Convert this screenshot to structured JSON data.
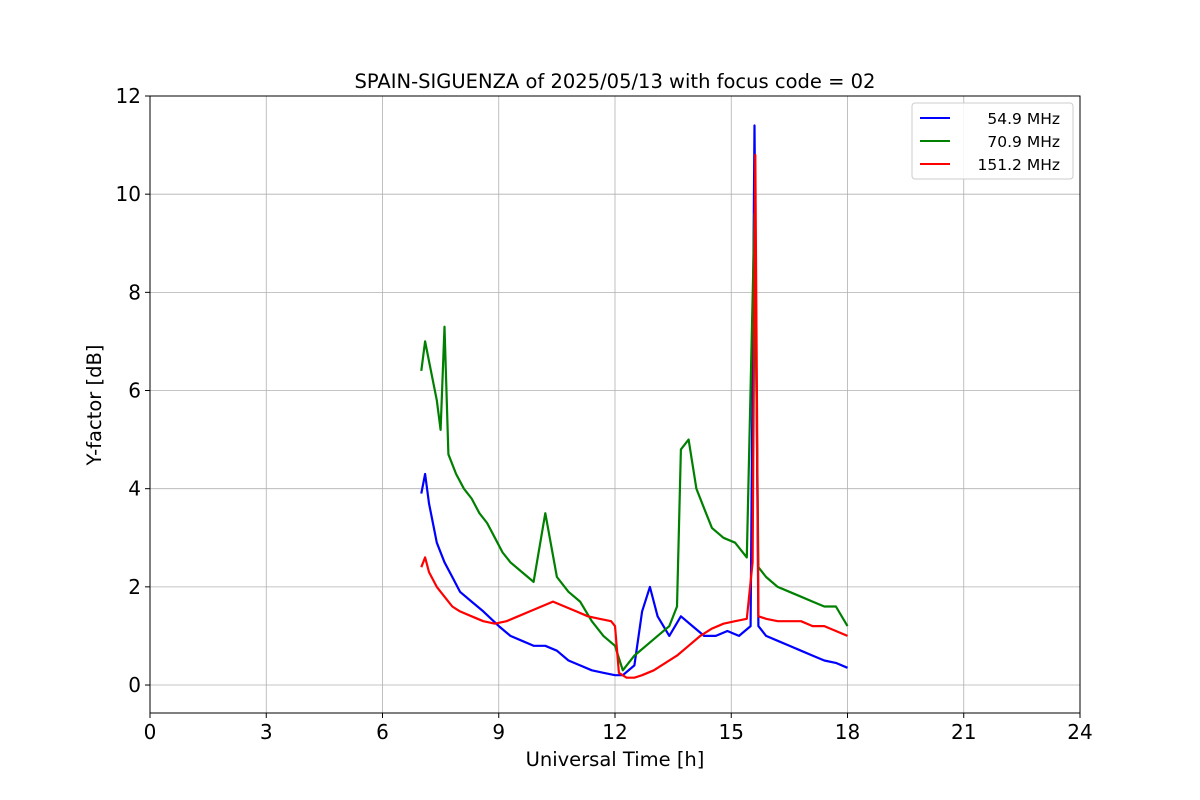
{
  "chart_data": {
    "type": "line",
    "title": "SPAIN-SIGUENZA of 2025/05/13 with focus code = 02",
    "xlabel": "Universal Time [h]",
    "ylabel": "Y-factor [dB]",
    "xlim": [
      0,
      24
    ],
    "ylim": [
      -0.57,
      12
    ],
    "xticks": [
      0,
      3,
      6,
      9,
      12,
      15,
      18,
      21,
      24
    ],
    "yticks": [
      0,
      2,
      4,
      6,
      8,
      10,
      12
    ],
    "grid": true,
    "legend_position": "top-right",
    "series": [
      {
        "name": "54.9 MHz",
        "color": "#0000ff",
        "x": [
          7.0,
          7.1,
          7.2,
          7.3,
          7.4,
          7.6,
          7.8,
          8.0,
          8.3,
          8.6,
          9.0,
          9.3,
          9.6,
          9.9,
          10.2,
          10.5,
          10.8,
          11.1,
          11.4,
          11.7,
          12.0,
          12.2,
          12.5,
          12.7,
          12.9,
          13.1,
          13.4,
          13.7,
          14.0,
          14.3,
          14.6,
          14.9,
          15.2,
          15.5,
          15.6,
          15.7,
          15.9,
          16.2,
          16.5,
          16.8,
          17.1,
          17.4,
          17.7,
          18.0
        ],
        "y": [
          3.9,
          4.3,
          3.7,
          3.3,
          2.9,
          2.5,
          2.2,
          1.9,
          1.7,
          1.5,
          1.2,
          1.0,
          0.9,
          0.8,
          0.8,
          0.7,
          0.5,
          0.4,
          0.3,
          0.25,
          0.2,
          0.2,
          0.4,
          1.5,
          2.0,
          1.4,
          1.0,
          1.4,
          1.2,
          1.0,
          1.0,
          1.1,
          1.0,
          1.2,
          11.4,
          1.2,
          1.0,
          0.9,
          0.8,
          0.7,
          0.6,
          0.5,
          0.45,
          0.35
        ]
      },
      {
        "name": "70.9 MHz",
        "color": "#008000",
        "x": [
          7.0,
          7.1,
          7.2,
          7.3,
          7.4,
          7.5,
          7.6,
          7.7,
          7.9,
          8.1,
          8.3,
          8.5,
          8.7,
          8.9,
          9.1,
          9.3,
          9.6,
          9.9,
          10.2,
          10.5,
          10.8,
          11.1,
          11.4,
          11.7,
          12.0,
          12.2,
          12.5,
          12.8,
          13.1,
          13.4,
          13.6,
          13.7,
          13.9,
          14.1,
          14.3,
          14.5,
          14.8,
          15.1,
          15.4,
          15.6,
          15.7,
          15.9,
          16.2,
          16.5,
          16.8,
          17.1,
          17.4,
          17.7,
          18.0
        ],
        "y": [
          6.4,
          7.0,
          6.6,
          6.2,
          5.8,
          5.2,
          7.3,
          4.7,
          4.3,
          4.0,
          3.8,
          3.5,
          3.3,
          3.0,
          2.7,
          2.5,
          2.3,
          2.1,
          3.5,
          2.2,
          1.9,
          1.7,
          1.3,
          1.0,
          0.8,
          0.3,
          0.6,
          0.8,
          1.0,
          1.2,
          1.6,
          4.8,
          5.0,
          4.0,
          3.6,
          3.2,
          3.0,
          2.9,
          2.6,
          9.6,
          2.4,
          2.2,
          2.0,
          1.9,
          1.8,
          1.7,
          1.6,
          1.6,
          1.2
        ]
      },
      {
        "name": "151.2 MHz",
        "color": "#ff0000",
        "x": [
          7.0,
          7.1,
          7.2,
          7.4,
          7.6,
          7.8,
          8.0,
          8.3,
          8.6,
          8.9,
          9.2,
          9.5,
          9.8,
          10.1,
          10.4,
          10.7,
          11.0,
          11.3,
          11.6,
          11.9,
          12.0,
          12.1,
          12.3,
          12.5,
          12.7,
          13.0,
          13.3,
          13.6,
          13.9,
          14.2,
          14.5,
          14.8,
          15.1,
          15.4,
          15.55,
          15.62,
          15.7,
          15.9,
          16.2,
          16.5,
          16.8,
          17.1,
          17.4,
          17.7,
          18.0
        ],
        "y": [
          2.4,
          2.6,
          2.3,
          2.0,
          1.8,
          1.6,
          1.5,
          1.4,
          1.3,
          1.25,
          1.3,
          1.4,
          1.5,
          1.6,
          1.7,
          1.6,
          1.5,
          1.4,
          1.35,
          1.3,
          1.2,
          0.25,
          0.15,
          0.15,
          0.2,
          0.3,
          0.45,
          0.6,
          0.8,
          1.0,
          1.15,
          1.25,
          1.3,
          1.35,
          2.5,
          10.8,
          1.4,
          1.35,
          1.3,
          1.3,
          1.3,
          1.2,
          1.2,
          1.1,
          1.0
        ]
      }
    ]
  }
}
